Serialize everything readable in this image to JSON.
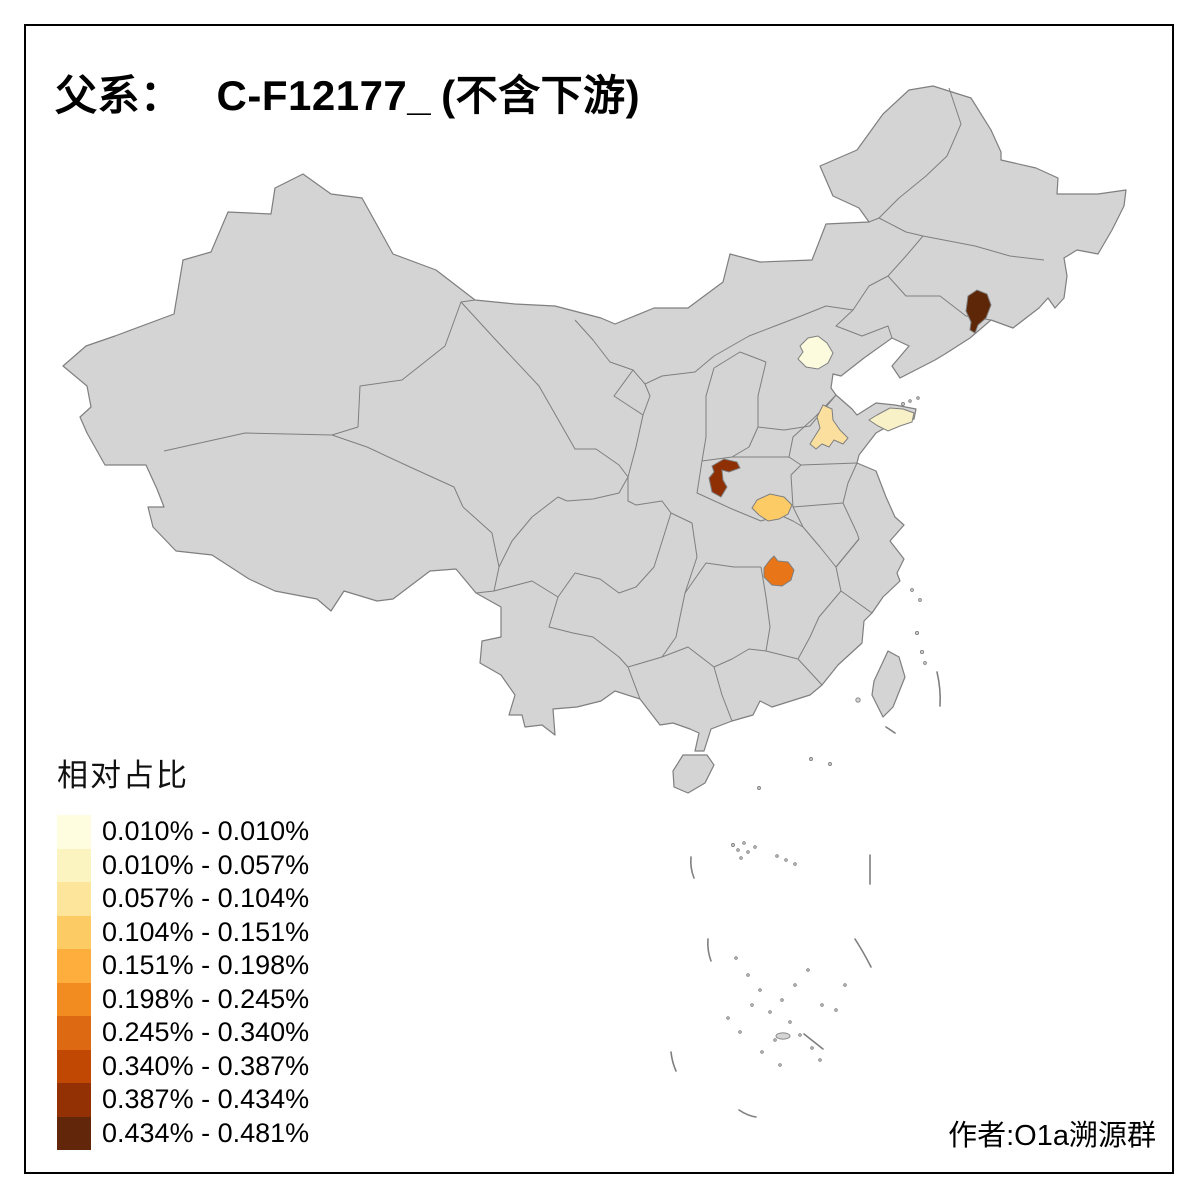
{
  "title": {
    "prefix": "父系：",
    "haplogroup": "C-F12177_",
    "suffix": "(不含下游)"
  },
  "legend": {
    "title": "相对占比",
    "items": [
      {
        "label": "0.010% - 0.010%",
        "color": "#FFFDE0"
      },
      {
        "label": "0.010% - 0.057%",
        "color": "#FBF3C0"
      },
      {
        "label": "0.057% - 0.104%",
        "color": "#FDE59B"
      },
      {
        "label": "0.104% - 0.151%",
        "color": "#FDCB63"
      },
      {
        "label": "0.151% - 0.198%",
        "color": "#FDAE3C"
      },
      {
        "label": "0.198% - 0.245%",
        "color": "#F28C20"
      },
      {
        "label": "0.245% - 0.340%",
        "color": "#DD6913"
      },
      {
        "label": "0.340% - 0.387%",
        "color": "#C14802"
      },
      {
        "label": "0.387% - 0.434%",
        "color": "#933105"
      },
      {
        "label": "0.434% - 0.481%",
        "color": "#62260B"
      }
    ]
  },
  "author": "作者:O1a溯源群",
  "map": {
    "background_color": "#FFFFFF",
    "land_color": "#D4D4D4",
    "border_color": "#7F7F7F",
    "frame_color": "#000000",
    "regions": [
      {
        "id": "region-jilin",
        "color": "#5E2708"
      },
      {
        "id": "region-beijing",
        "color": "#FDFBDE"
      },
      {
        "id": "region-shandong-east",
        "color": "#F8F0C6"
      },
      {
        "id": "region-shandong-west",
        "color": "#FBDF9E"
      },
      {
        "id": "region-shaanxi-shanxi",
        "color": "#8E3004"
      },
      {
        "id": "region-henan",
        "color": "#FCCB66"
      },
      {
        "id": "region-hubei",
        "color": "#E87517"
      }
    ]
  }
}
